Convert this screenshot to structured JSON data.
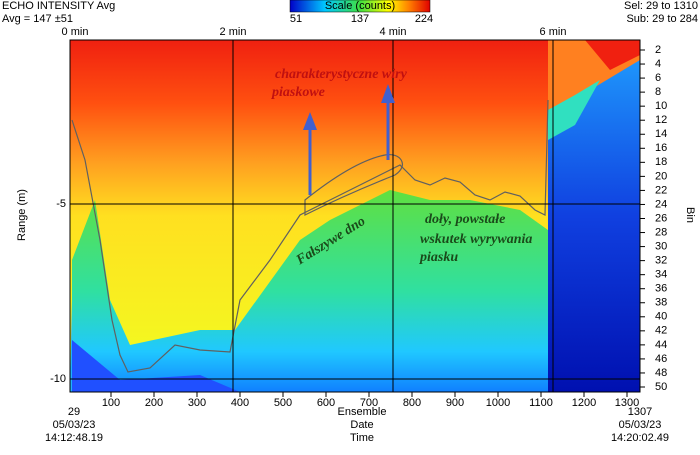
{
  "header": {
    "title": "ECHO INTENSITY Avg",
    "average": "Avg = 147 ±51",
    "selection": "Sel: 29 to 1310",
    "subset": "Sub: 29 to 284"
  },
  "color_scale": {
    "label": "Scale (counts)",
    "ticks": [
      "51",
      "137",
      "224"
    ]
  },
  "time_axis": {
    "ticks": [
      "0 min",
      "2 min",
      "4 min",
      "6 min"
    ]
  },
  "range_axis": {
    "label": "Range (m)",
    "ticks": [
      "-5",
      "-10"
    ]
  },
  "bin_axis": {
    "label": "Bin",
    "ticks": [
      "2",
      "4",
      "6",
      "8",
      "10",
      "12",
      "14",
      "16",
      "18",
      "20",
      "22",
      "24",
      "26",
      "28",
      "30",
      "32",
      "34",
      "36",
      "38",
      "40",
      "42",
      "44",
      "46",
      "48",
      "50"
    ]
  },
  "ensemble_axis": {
    "ticks": [
      "100",
      "200",
      "300",
      "400",
      "500",
      "600",
      "700",
      "800",
      "900",
      "1000",
      "1100",
      "1200",
      "1300"
    ]
  },
  "footer": {
    "left": [
      "29",
      "05/03/23",
      "14:12:48.19"
    ],
    "center": [
      "Ensemble",
      "Date",
      "Time"
    ],
    "right": [
      "1307",
      "05/03/23",
      "14:20:02.49"
    ]
  },
  "annotations": {
    "sand_vortices": [
      "charakterystyczne wiry",
      "piaskowe"
    ],
    "false_bottom": "Fałszywe dno",
    "pits": [
      "doły, powstałe",
      "wskutek wyrywania",
      "piasku"
    ]
  }
}
